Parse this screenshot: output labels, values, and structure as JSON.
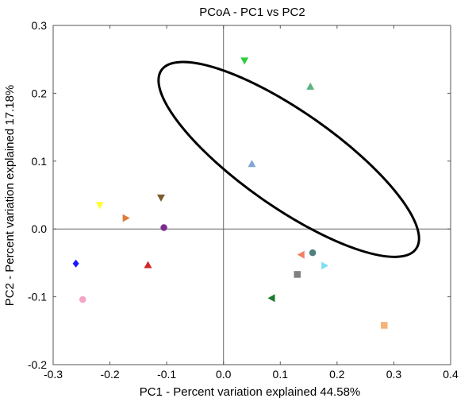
{
  "chart_data": {
    "type": "scatter",
    "title": "PCoA - PC1 vs PC2",
    "xlabel": "PC1 - Percent variation explained 44.58%",
    "ylabel": "PC2 - Percent variation explained 17.18%",
    "xlim": [
      -0.3,
      0.4
    ],
    "ylim": [
      -0.2,
      0.3
    ],
    "x_ticks": [
      -0.3,
      -0.2,
      -0.1,
      0.0,
      0.1,
      0.2,
      0.3,
      0.4
    ],
    "x_tick_labels": [
      "-0.3",
      "-0.2",
      "-0.1",
      "0.0",
      "0.1",
      "0.2",
      "0.3",
      "0.4"
    ],
    "y_ticks": [
      -0.2,
      -0.1,
      0.0,
      0.1,
      0.2,
      0.3
    ],
    "y_tick_labels": [
      "-0.2",
      "-0.1",
      "0.0",
      "0.1",
      "0.2",
      "0.3"
    ],
    "grid": false,
    "zero_lines": true,
    "ellipse": {
      "cx": 0.115,
      "cy": 0.1025,
      "rx": 0.2738,
      "ry": 0.0838,
      "angle_deg": -35,
      "stroke": "#000000"
    },
    "points": [
      {
        "x": 0.037,
        "y": 0.248,
        "marker": "triangle-down",
        "color": "#2ecc40"
      },
      {
        "x": 0.153,
        "y": 0.21,
        "marker": "triangle-up",
        "color": "#5fb37f"
      },
      {
        "x": 0.05,
        "y": 0.096,
        "marker": "triangle-up",
        "color": "#7fa6d6"
      },
      {
        "x": -0.11,
        "y": 0.046,
        "marker": "triangle-down",
        "color": "#7a5c2e"
      },
      {
        "x": -0.218,
        "y": 0.035,
        "marker": "triangle-down",
        "color": "#ffff33"
      },
      {
        "x": -0.172,
        "y": 0.016,
        "marker": "triangle-right",
        "color": "#e07b39"
      },
      {
        "x": -0.105,
        "y": 0.002,
        "marker": "circle",
        "color": "#7b2d8e"
      },
      {
        "x": -0.26,
        "y": -0.051,
        "marker": "diamond",
        "color": "#1a1aff"
      },
      {
        "x": -0.133,
        "y": -0.053,
        "marker": "triangle-up",
        "color": "#d62728"
      },
      {
        "x": -0.248,
        "y": -0.104,
        "marker": "circle",
        "color": "#f5a3c7"
      },
      {
        "x": 0.157,
        "y": -0.035,
        "marker": "circle",
        "color": "#4f7f7f"
      },
      {
        "x": 0.137,
        "y": -0.038,
        "marker": "triangle-left",
        "color": "#f08060"
      },
      {
        "x": 0.178,
        "y": -0.054,
        "marker": "triangle-right",
        "color": "#7fe0f0"
      },
      {
        "x": 0.13,
        "y": -0.067,
        "marker": "square",
        "color": "#808080"
      },
      {
        "x": 0.085,
        "y": -0.102,
        "marker": "triangle-left",
        "color": "#1f7a2f"
      },
      {
        "x": 0.283,
        "y": -0.142,
        "marker": "square",
        "color": "#f5b27a"
      }
    ]
  }
}
